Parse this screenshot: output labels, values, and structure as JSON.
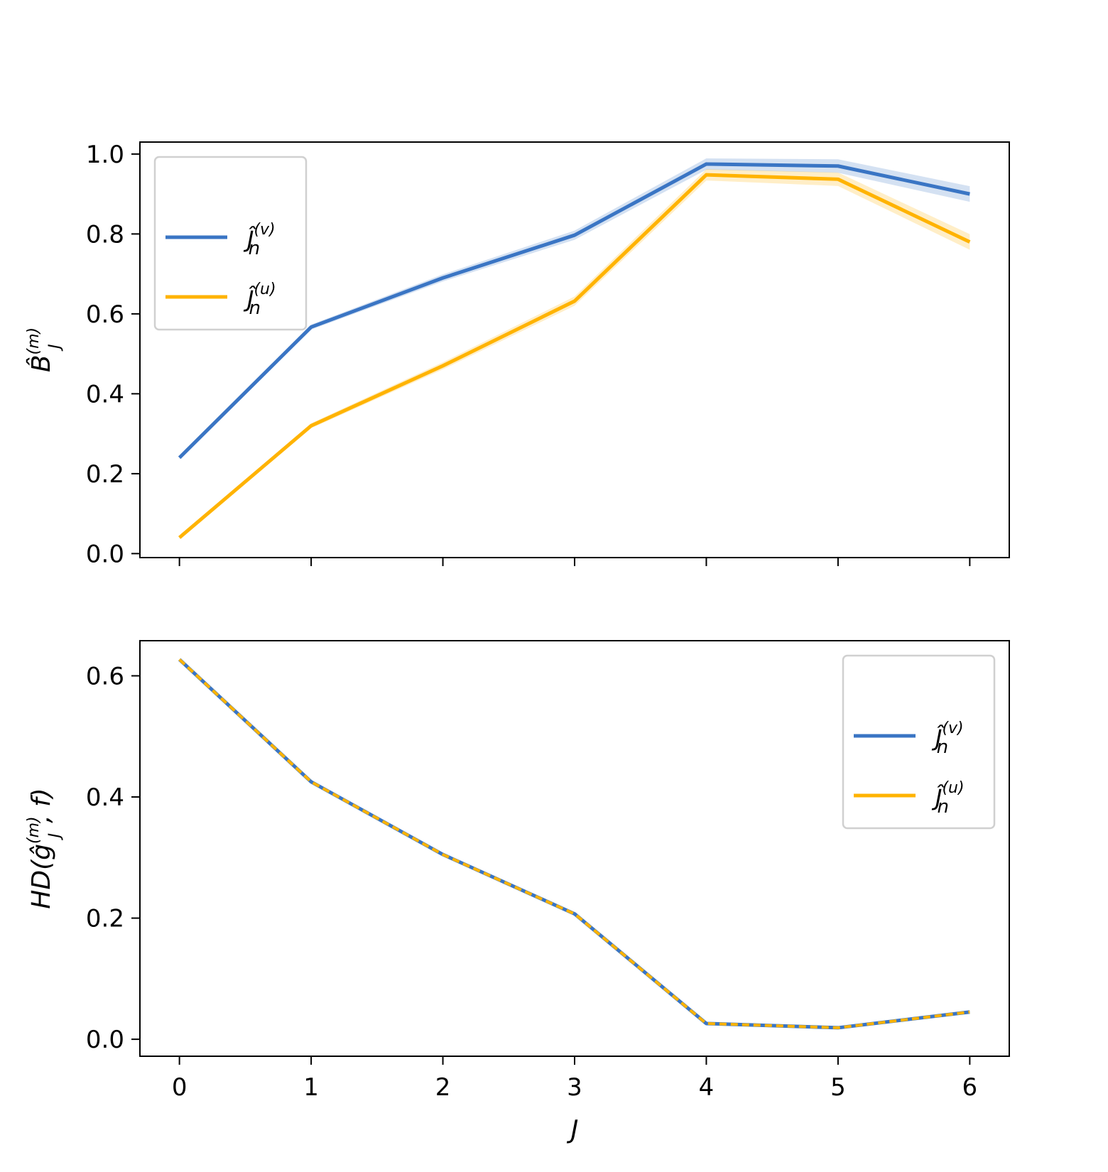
{
  "colors": {
    "v": "#3a75c4",
    "u": "#ffb300"
  },
  "chart_data": [
    {
      "type": "line",
      "panel": "top",
      "x": [
        0,
        1,
        2,
        3,
        4,
        5,
        6
      ],
      "xlim": [
        -0.3,
        6.3
      ],
      "ylim": [
        -0.01,
        1.03
      ],
      "xticks": [
        "",
        "",
        "",
        "",
        "",
        "",
        ""
      ],
      "yticks": [
        "0.0",
        "0.2",
        "0.4",
        "0.6",
        "0.8",
        "1.0"
      ],
      "xlabel": "",
      "ylabel": "B̂",
      "ylabel_sub": "J",
      "ylabel_sup": "(m)",
      "legend_position": "upper-left",
      "grid": false,
      "series": [
        {
          "key": "v",
          "name": "Ĵ",
          "name_sub": "n",
          "name_sup": "(v)",
          "style": "solid",
          "values": [
            0.24,
            0.567,
            0.69,
            0.797,
            0.975,
            0.97,
            0.9
          ]
        },
        {
          "key": "u",
          "name": "Ĵ",
          "name_sub": "n",
          "name_sup": "(u)",
          "style": "solid",
          "values": [
            0.04,
            0.32,
            0.47,
            0.632,
            0.948,
            0.937,
            0.78
          ]
        }
      ]
    },
    {
      "type": "line",
      "panel": "bottom",
      "x": [
        0,
        1,
        2,
        3,
        4,
        5,
        6
      ],
      "xlim": [
        -0.3,
        6.3
      ],
      "ylim": [
        -0.028,
        0.658
      ],
      "xticks": [
        "0",
        "1",
        "2",
        "3",
        "4",
        "5",
        "6"
      ],
      "yticks": [
        "0.0",
        "0.2",
        "0.4",
        "0.6"
      ],
      "xlabel": "J",
      "ylabel": "HD(ĝ",
      "ylabel_sub": "J",
      "ylabel_sup": "(m)",
      "ylabel_tail": ", f)",
      "legend_position": "right",
      "grid": false,
      "series": [
        {
          "key": "v",
          "name": "Ĵ",
          "name_sub": "n",
          "name_sup": "(v)",
          "style": "solid",
          "values": [
            0.627,
            0.425,
            0.305,
            0.207,
            0.026,
            0.019,
            0.045
          ]
        },
        {
          "key": "u",
          "name": "Ĵ",
          "name_sub": "n",
          "name_sup": "(u)",
          "style": "dashed",
          "values": [
            0.627,
            0.425,
            0.305,
            0.207,
            0.026,
            0.019,
            0.045
          ]
        }
      ]
    }
  ]
}
